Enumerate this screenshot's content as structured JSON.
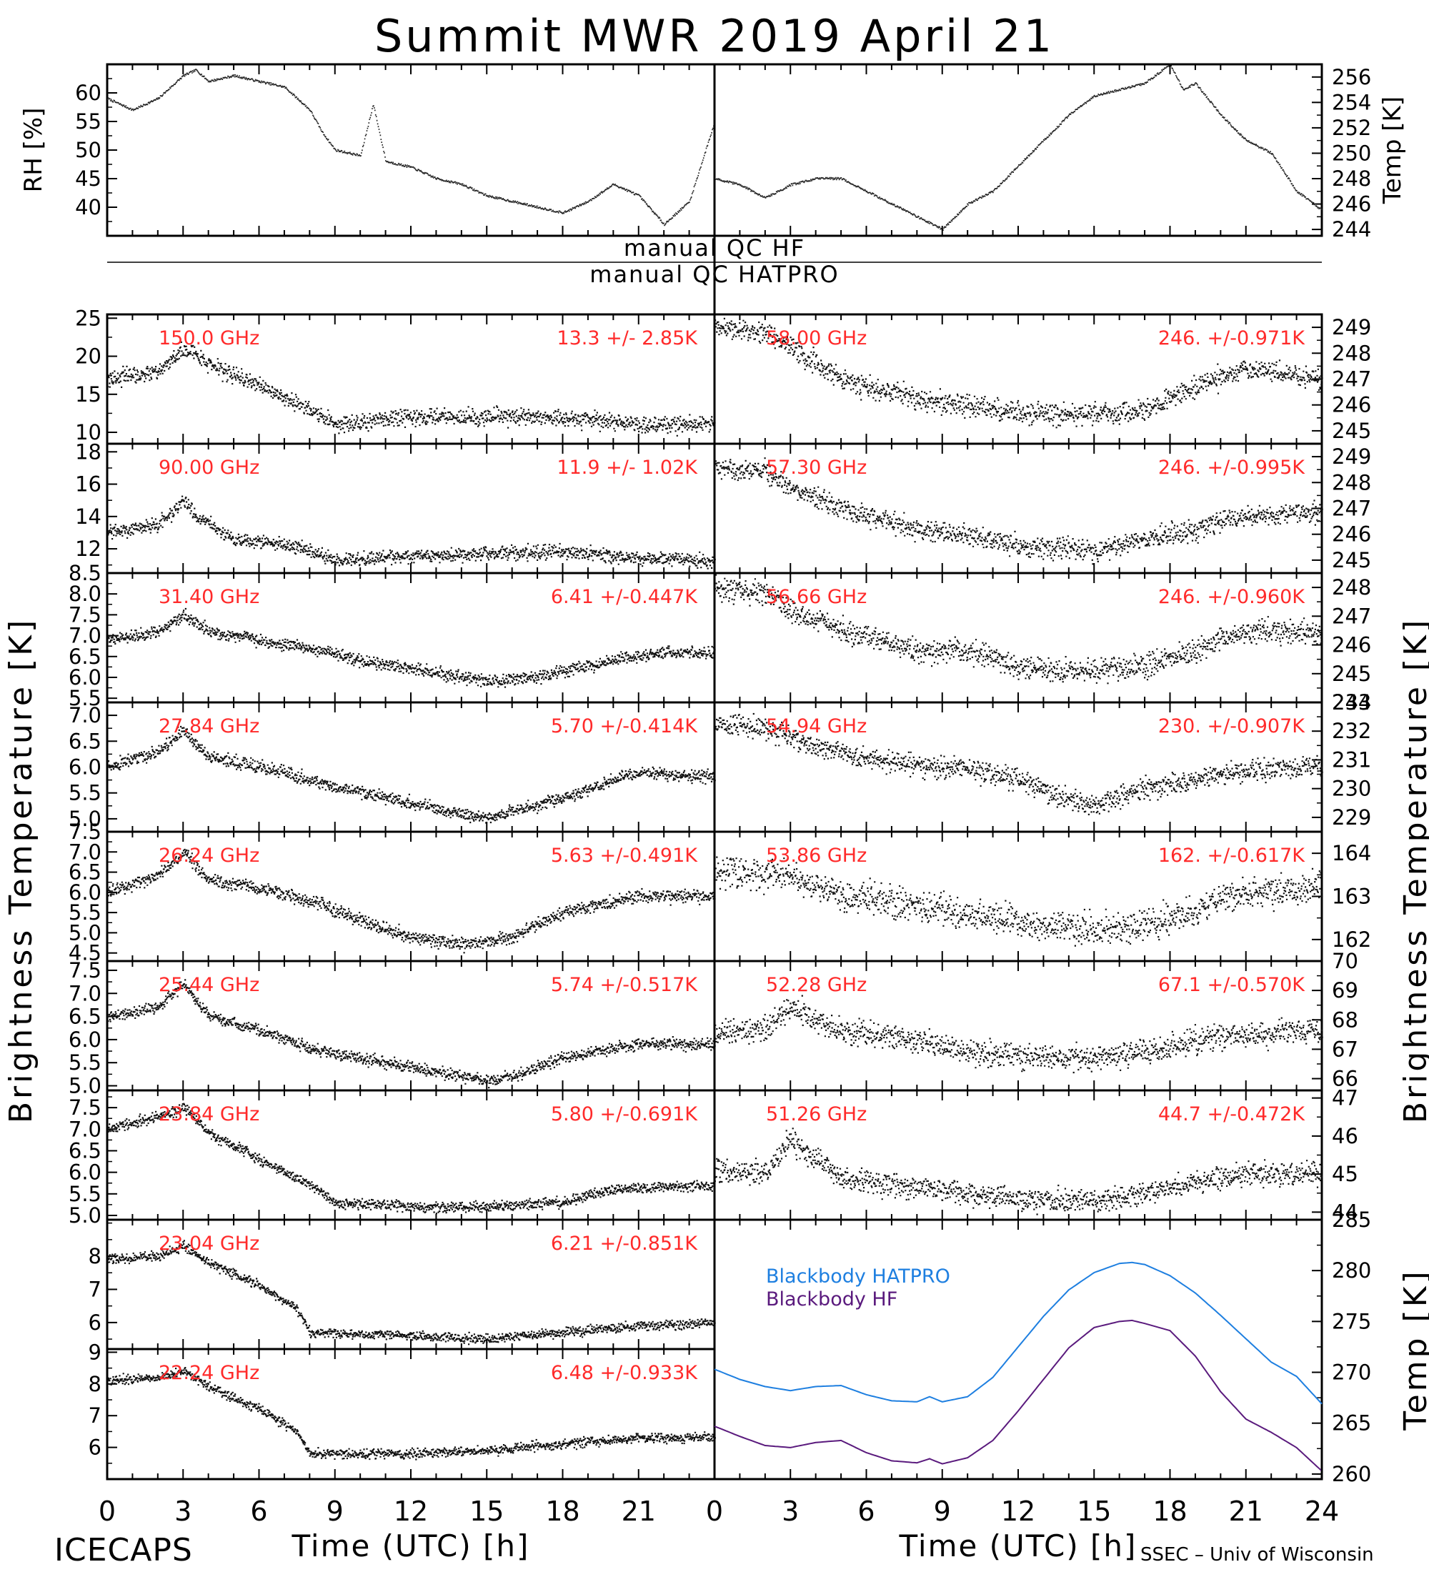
{
  "title": "Summit MWR 2019 April 21",
  "footer": {
    "left": "ICECAPS",
    "right": "SSEC – Univ of Wisconsin"
  },
  "xaxis": {
    "label": "Time (UTC) [h]",
    "ticks": [
      0,
      3,
      6,
      9,
      12,
      15,
      18,
      21,
      24
    ]
  },
  "left_axis_label": "Brightness Temperature [K]",
  "right_axis_label": "Brightness Temperature [K]",
  "qc": {
    "hf": "manual QC HF",
    "hatpro": "manual QC HATPRO"
  },
  "chart_data": [
    {
      "type": "scatter",
      "panel": "met-rh",
      "ylabel": "RH [%]",
      "ylim": [
        35,
        65
      ],
      "yticks": [
        40,
        45,
        50,
        55,
        60
      ],
      "x": [
        0,
        1,
        2,
        3,
        3.5,
        4,
        5,
        6,
        7,
        8,
        8.5,
        9,
        10,
        10.5,
        11,
        12,
        13,
        14,
        15,
        16,
        17,
        18,
        19,
        20,
        21,
        22,
        23,
        24
      ],
      "y": [
        59,
        57,
        59,
        63,
        64,
        62,
        63,
        62,
        61,
        57,
        53,
        50,
        49,
        58,
        48,
        47,
        45,
        44,
        42,
        41,
        40,
        39,
        41,
        44,
        42,
        37,
        41,
        55
      ]
    },
    {
      "type": "scatter",
      "panel": "met-temp",
      "ylabel": "Temp [K]",
      "ylim": [
        243.5,
        257
      ],
      "yticks": [
        244,
        246,
        248,
        250,
        252,
        254,
        256
      ],
      "x": [
        0,
        1,
        2,
        3,
        4,
        5,
        6,
        7,
        8,
        9,
        10,
        11,
        12,
        13,
        14,
        15,
        16,
        17,
        18,
        18.5,
        19,
        20,
        21,
        22,
        23,
        24
      ],
      "y": [
        248,
        247.5,
        246.5,
        247.5,
        248,
        248,
        247,
        246,
        245,
        244,
        246,
        247,
        249,
        251,
        253,
        254.5,
        255,
        255.5,
        257,
        255,
        255.5,
        253,
        251,
        250,
        247,
        245.5
      ]
    },
    {
      "type": "scatter",
      "freq": "150.0 GHz",
      "stats": "13.3 +/-  2.85K",
      "ylim": [
        8.5,
        25.5
      ],
      "yticks": [
        10,
        15,
        20,
        25
      ],
      "noise": 0.9,
      "x": [
        0,
        2,
        3,
        4,
        6,
        8,
        9,
        12,
        15,
        18,
        21,
        24
      ],
      "y": [
        17,
        18,
        21,
        19,
        16,
        13,
        11,
        12,
        12,
        12,
        11,
        11
      ]
    },
    {
      "type": "scatter",
      "freq": "90.00 GHz",
      "stats": "11.9 +/-  1.02K",
      "ylim": [
        10.5,
        18.5
      ],
      "yticks": [
        12,
        14,
        16,
        18
      ],
      "noise": 0.35,
      "x": [
        0,
        2,
        3,
        3.5,
        5,
        7,
        9,
        12,
        15,
        18,
        21,
        24
      ],
      "y": [
        13,
        13.5,
        15,
        14,
        12.5,
        12.3,
        11.3,
        11.5,
        11.7,
        11.8,
        11.4,
        11.2
      ]
    },
    {
      "type": "scatter",
      "freq": "31.40 GHz",
      "stats": "6.41 +/-0.447K",
      "ylim": [
        5.4,
        8.5
      ],
      "yticks": [
        5.5,
        6,
        6.5,
        7,
        7.5,
        8,
        8.5
      ],
      "ytick_labels": [
        "5.5",
        "6.0",
        "6.5",
        "7.0",
        "7.5",
        "8.0",
        "8.5"
      ],
      "noise": 0.12,
      "x": [
        0,
        2,
        3,
        4,
        6,
        8,
        10,
        12,
        15,
        17,
        20,
        22,
        24
      ],
      "y": [
        6.9,
        7.1,
        7.5,
        7.1,
        6.9,
        6.7,
        6.4,
        6.2,
        5.9,
        6.0,
        6.4,
        6.6,
        6.6
      ]
    },
    {
      "type": "scatter",
      "freq": "27.84 GHz",
      "stats": "5.70 +/-0.414K",
      "ylim": [
        4.75,
        7.25
      ],
      "yticks": [
        5.0,
        5.5,
        6.0,
        6.5,
        7.0
      ],
      "ytick_labels": [
        "5.0",
        "5.5",
        "6.0",
        "6.5",
        "7.0"
      ],
      "noise": 0.1,
      "x": [
        0,
        2,
        3,
        4,
        7,
        9,
        12,
        15,
        18,
        21,
        24
      ],
      "y": [
        6.0,
        6.3,
        6.7,
        6.2,
        5.9,
        5.6,
        5.3,
        5.0,
        5.4,
        5.9,
        5.8
      ]
    },
    {
      "type": "scatter",
      "freq": "26.24 GHz",
      "stats": "5.63 +/-0.491K",
      "ylim": [
        4.3,
        7.5
      ],
      "yticks": [
        4.5,
        5,
        5.5,
        6,
        6.5,
        7,
        7.5
      ],
      "ytick_labels": [
        "4.5",
        "5.0",
        "5.5",
        "6.0",
        "6.5",
        "7.0",
        "7.5"
      ],
      "noise": 0.13,
      "x": [
        0,
        2,
        3,
        4,
        6,
        8,
        10,
        12,
        14,
        16,
        18,
        21,
        24
      ],
      "y": [
        6.0,
        6.4,
        7.0,
        6.3,
        6.1,
        5.8,
        5.3,
        4.9,
        4.7,
        4.9,
        5.5,
        5.9,
        5.9
      ]
    },
    {
      "type": "scatter",
      "freq": "25.44 GHz",
      "stats": "5.74 +/-0.517K",
      "ylim": [
        4.9,
        7.7
      ],
      "yticks": [
        5.0,
        5.5,
        6.0,
        6.5,
        7.0,
        7.5
      ],
      "ytick_labels": [
        "5.0",
        "5.5",
        "6.0",
        "6.5",
        "7.0",
        "7.5"
      ],
      "noise": 0.1,
      "x": [
        0,
        2,
        3,
        4,
        6,
        8,
        10,
        12,
        15,
        16,
        18,
        21,
        24
      ],
      "y": [
        6.5,
        6.7,
        7.2,
        6.5,
        6.2,
        5.8,
        5.6,
        5.4,
        5.1,
        5.2,
        5.6,
        5.9,
        5.9
      ]
    },
    {
      "type": "scatter",
      "freq": "23.84 GHz",
      "stats": "5.80 +/-0.691K",
      "ylim": [
        4.9,
        7.9
      ],
      "yticks": [
        5.0,
        5.5,
        6.0,
        6.5,
        7.0,
        7.5
      ],
      "ytick_labels": [
        "5.0",
        "5.5",
        "6.0",
        "6.5",
        "7.0",
        "7.5"
      ],
      "noise": 0.1,
      "x": [
        0,
        2,
        3,
        4,
        6,
        8,
        9,
        12,
        15,
        18,
        20,
        24
      ],
      "y": [
        7.0,
        7.3,
        7.5,
        6.9,
        6.3,
        5.7,
        5.3,
        5.2,
        5.2,
        5.3,
        5.6,
        5.7
      ]
    },
    {
      "type": "scatter",
      "freq": "23.04 GHz",
      "stats": "6.21 +/-0.851K",
      "ylim": [
        5.2,
        9.1
      ],
      "yticks": [
        6,
        7,
        8
      ],
      "noise": 0.12,
      "x": [
        0,
        2,
        3,
        4,
        6,
        7.5,
        8,
        12,
        15,
        18,
        21,
        24
      ],
      "y": [
        7.9,
        8.0,
        8.3,
        7.8,
        7.1,
        6.4,
        5.7,
        5.6,
        5.5,
        5.7,
        5.9,
        6.0
      ]
    },
    {
      "type": "scatter",
      "freq": "22.24 GHz",
      "stats": "6.48 +/-0.933K",
      "ylim": [
        5.0,
        9.1
      ],
      "yticks": [
        6,
        7,
        8,
        9
      ],
      "noise": 0.12,
      "x": [
        0,
        2,
        3,
        4,
        6,
        7.5,
        8,
        12,
        15,
        18,
        21,
        24
      ],
      "y": [
        8.1,
        8.2,
        8.4,
        7.9,
        7.2,
        6.5,
        5.8,
        5.8,
        5.9,
        6.1,
        6.3,
        6.3
      ]
    },
    {
      "type": "scatter",
      "freq": "58.00 GHz",
      "stats": "246. +/-0.971K",
      "ylim": [
        244.5,
        249.5
      ],
      "yticks": [
        245,
        246,
        247,
        248,
        249
      ],
      "noise": 0.35,
      "x": [
        0,
        2,
        3,
        5,
        8,
        10,
        12,
        15,
        17,
        19,
        21,
        24
      ],
      "y": [
        249,
        248.8,
        248.2,
        247,
        246.2,
        246,
        245.7,
        245.6,
        245.8,
        246.7,
        247.4,
        247
      ]
    },
    {
      "type": "scatter",
      "freq": "57.30 GHz",
      "stats": "246. +/-0.995K",
      "ylim": [
        244.5,
        249.5
      ],
      "yticks": [
        245,
        246,
        247,
        248,
        249
      ],
      "noise": 0.33,
      "x": [
        0,
        2,
        3,
        5,
        8,
        10,
        12,
        15,
        17,
        19,
        21,
        24
      ],
      "y": [
        248.6,
        248.4,
        247.8,
        247,
        246.2,
        246,
        245.5,
        245.4,
        245.8,
        246.2,
        246.7,
        246.9
      ]
    },
    {
      "type": "scatter",
      "freq": "56.66 GHz",
      "stats": "246. +/-0.960K",
      "ylim": [
        244,
        248.5
      ],
      "yticks": [
        244,
        245,
        246,
        247,
        248
      ],
      "noise": 0.33,
      "x": [
        0,
        2,
        3,
        5,
        8,
        10,
        12,
        15,
        17,
        19,
        21,
        24
      ],
      "y": [
        248,
        247.8,
        247.2,
        246.5,
        245.8,
        245.8,
        245.2,
        245.1,
        245.3,
        245.8,
        246.5,
        246.4
      ]
    },
    {
      "type": "scatter",
      "freq": "54.94 GHz",
      "stats": "230. +/-0.907K",
      "ylim": [
        228.5,
        233
      ],
      "yticks": [
        229,
        230,
        231,
        232,
        233
      ],
      "noise": 0.3,
      "x": [
        0,
        2,
        3,
        5,
        8,
        10,
        12,
        14,
        15,
        17,
        19,
        21,
        24
      ],
      "y": [
        232.3,
        232.1,
        231.8,
        231.2,
        230.8,
        230.7,
        230.3,
        229.6,
        229.4,
        230,
        230.3,
        230.6,
        230.8
      ]
    },
    {
      "type": "scatter",
      "freq": "53.86 GHz",
      "stats": "162. +/-0.617K",
      "ylim": [
        161.5,
        164.5
      ],
      "yticks": [
        162,
        163,
        164
      ],
      "noise": 0.3,
      "x": [
        0,
        2,
        3,
        5,
        8,
        10,
        12,
        15,
        17,
        19,
        21,
        24
      ],
      "y": [
        163.6,
        163.5,
        163.5,
        163,
        162.8,
        162.6,
        162.4,
        162.2,
        162.3,
        162.7,
        163.1,
        163.2
      ]
    },
    {
      "type": "scatter",
      "freq": "52.28 GHz",
      "stats": "67.1 +/-0.570K",
      "ylim": [
        65.6,
        70
      ],
      "yticks": [
        66,
        67,
        68,
        69,
        70
      ],
      "noise": 0.35,
      "x": [
        0,
        2,
        3,
        5,
        8,
        10,
        12,
        15,
        17,
        19,
        21,
        24
      ],
      "y": [
        67.5,
        67.7,
        68.4,
        67.6,
        67.3,
        66.9,
        66.8,
        66.7,
        66.9,
        67.3,
        67.5,
        67.6
      ]
    },
    {
      "type": "scatter",
      "freq": "51.26 GHz",
      "stats": "44.7 +/-0.472K",
      "ylim": [
        43.8,
        47.2
      ],
      "yticks": [
        44,
        45,
        46,
        47
      ],
      "noise": 0.25,
      "x": [
        0,
        2,
        3,
        5,
        8,
        10,
        12,
        15,
        17,
        19,
        21,
        24
      ],
      "y": [
        45.1,
        45,
        45.9,
        44.9,
        44.6,
        44.5,
        44.3,
        44.3,
        44.5,
        44.8,
        45,
        45
      ]
    },
    {
      "type": "line",
      "panel": "blackbody",
      "ylabel": "Temp [K]",
      "ylim": [
        259.5,
        285
      ],
      "yticks": [
        260,
        265,
        270,
        275,
        280,
        285
      ],
      "legend": [
        "Blackbody HATPRO",
        "Blackbody HF"
      ],
      "series": [
        {
          "name": "Blackbody HATPRO",
          "color": "#1e7fe0",
          "x": [
            0,
            1,
            2,
            3,
            4,
            5,
            6,
            7,
            8,
            8.5,
            9,
            10,
            11,
            12,
            13,
            14,
            15,
            16,
            16.5,
            17,
            18,
            19,
            20,
            21,
            22,
            23,
            24
          ],
          "y": [
            270.3,
            269.3,
            268.6,
            268.2,
            268.6,
            268.7,
            267.8,
            267.2,
            267.1,
            267.6,
            267.1,
            267.6,
            269.5,
            272.5,
            275.5,
            278.1,
            279.8,
            280.7,
            280.8,
            280.6,
            279.5,
            277.8,
            275.6,
            273.3,
            271,
            269.6,
            266.9
          ]
        },
        {
          "name": "Blackbody HF",
          "color": "#5a1a7d",
          "x": [
            0,
            1,
            2,
            3,
            4,
            5,
            6,
            7,
            8,
            8.5,
            9,
            10,
            11,
            12,
            13,
            14,
            15,
            16,
            16.5,
            17,
            18,
            19,
            20,
            21,
            22,
            23,
            24
          ],
          "y": [
            264.7,
            263.7,
            262.8,
            262.6,
            263.1,
            263.3,
            262.1,
            261.3,
            261.1,
            261.5,
            261,
            261.6,
            263.3,
            266.2,
            269.3,
            272.4,
            274.4,
            275,
            275.1,
            274.8,
            274.1,
            271.6,
            268.1,
            265.4,
            264.1,
            262.6,
            260.3
          ]
        }
      ]
    }
  ]
}
